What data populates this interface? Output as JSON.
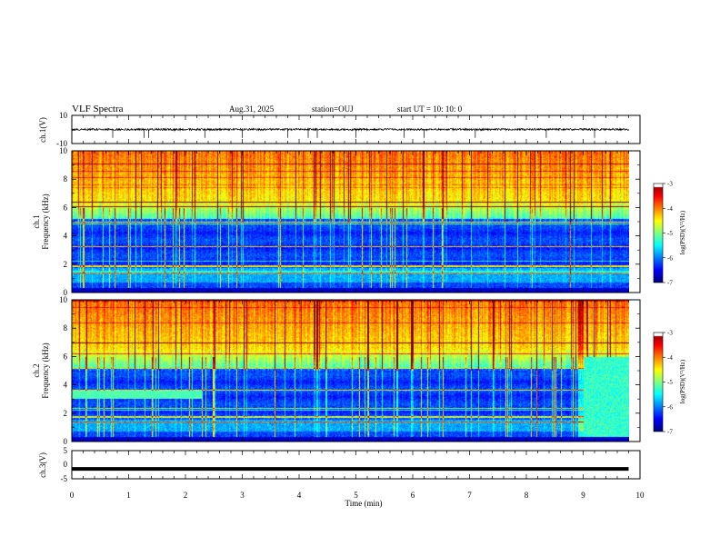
{
  "header": {
    "title": "VLF Spectra",
    "date": "Aug.31, 2025",
    "station": "station=OUJ",
    "start_ut": "start UT =  10: 10: 0"
  },
  "colors": {
    "scale": [
      "#00007f",
      "#0000ff",
      "#0080ff",
      "#00ffff",
      "#80ff80",
      "#ffff00",
      "#ff8000",
      "#ff0000",
      "#7f0000",
      "#ffffff"
    ]
  },
  "chart_data": [
    {
      "type": "line",
      "panel": "ch1-waveform",
      "ylabel": "ch.1(V)",
      "ylim": [
        -10,
        10
      ],
      "yticks": [
        "10",
        "-10"
      ],
      "baseline": 0,
      "noise_amplitude": 0.7,
      "spikes": [
        0.72,
        1.27,
        1.35,
        2.34,
        3.0,
        3.8,
        4.16,
        4.32,
        5.0,
        5.85,
        6.2,
        7.1,
        8.35,
        9.2
      ]
    },
    {
      "type": "heatmap",
      "panel": "ch1-spectrogram",
      "ylabel": "ch.1\nFrequency (kHz)",
      "ylim": [
        0,
        10
      ],
      "yticks": [
        "0",
        "2",
        "4",
        "6",
        "8",
        "10"
      ],
      "xlim": [
        0,
        10
      ],
      "colorbar": {
        "label": "log(PSD)(V²/Hz)",
        "ticks": [
          "-3",
          "-4",
          "-5",
          "-6",
          "-7"
        ],
        "range": [
          -7,
          -3
        ]
      }
    },
    {
      "type": "heatmap",
      "panel": "ch2-spectrogram",
      "ylabel": "ch.2\nFrequency (kHz)",
      "ylim": [
        0,
        10
      ],
      "yticks": [
        "0",
        "2",
        "4",
        "6",
        "8",
        "10"
      ],
      "xlim": [
        0,
        10
      ],
      "colorbar": {
        "label": "log(PSD)(V²/Hz)",
        "ticks": [
          "-3",
          "-4",
          "-5",
          "-6",
          "-7"
        ],
        "range": [
          -7,
          -3
        ]
      }
    },
    {
      "type": "line",
      "panel": "ch3-waveform",
      "ylabel": "ch.3(V)",
      "ylim": [
        -5,
        5
      ],
      "yticks": [
        "5",
        "0",
        "-5"
      ],
      "baseline": -1.5,
      "xlabel": "Time (min)",
      "xticks": [
        "0",
        "1",
        "2",
        "3",
        "4",
        "5",
        "6",
        "7",
        "8",
        "9",
        "10"
      ],
      "xlim": [
        0,
        10
      ]
    }
  ]
}
